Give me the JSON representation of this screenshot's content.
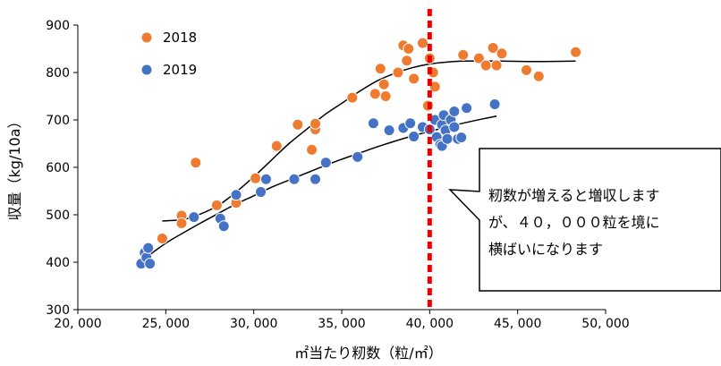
{
  "chart_data": {
    "type": "scatter",
    "xlabel": "㎡当たり籾数（粒/㎡）",
    "ylabel": "収量（kg/10a）",
    "xlim": [
      20000,
      50000
    ],
    "ylim": [
      300,
      900
    ],
    "x_ticks": [
      20000,
      25000,
      30000,
      35000,
      40000,
      45000,
      50000
    ],
    "x_tick_labels": [
      "20, 000",
      "25, 000",
      "30, 000",
      "35, 000",
      "40, 000",
      "45, 000",
      "50, 000"
    ],
    "y_ticks": [
      300,
      400,
      500,
      600,
      700,
      800,
      900
    ],
    "y_tick_labels": [
      "300",
      "400",
      "500",
      "600",
      "700",
      "800",
      "900"
    ],
    "grid": false,
    "legend_position": "top-left",
    "reference_line_x": 40000,
    "callout": {
      "lines": [
        "籾数が増えると増収します",
        "が、４０，０００粒を境に",
        "横ばいになります"
      ]
    },
    "series": [
      {
        "name": "2018",
        "color": "#ee7b30",
        "points": [
          [
            24800,
            450
          ],
          [
            25900,
            498
          ],
          [
            25900,
            482
          ],
          [
            26700,
            610
          ],
          [
            27900,
            520
          ],
          [
            29000,
            525
          ],
          [
            30100,
            577
          ],
          [
            31300,
            645
          ],
          [
            32500,
            690
          ],
          [
            33300,
            637
          ],
          [
            33500,
            680
          ],
          [
            33500,
            692
          ],
          [
            35600,
            747
          ],
          [
            36900,
            755
          ],
          [
            37200,
            808
          ],
          [
            37400,
            775
          ],
          [
            37500,
            750
          ],
          [
            38200,
            800
          ],
          [
            38500,
            857
          ],
          [
            38700,
            825
          ],
          [
            38800,
            850
          ],
          [
            39100,
            787
          ],
          [
            39600,
            862
          ],
          [
            39900,
            730
          ],
          [
            40000,
            830
          ],
          [
            40200,
            800
          ],
          [
            40300,
            770
          ],
          [
            41900,
            837
          ],
          [
            42800,
            830
          ],
          [
            43200,
            815
          ],
          [
            43600,
            852
          ],
          [
            43800,
            815
          ],
          [
            44100,
            840
          ],
          [
            45500,
            805
          ],
          [
            46200,
            792
          ],
          [
            48300,
            843
          ]
        ]
      },
      {
        "name": "2019",
        "color": "#4472c4",
        "points": [
          [
            23600,
            397
          ],
          [
            23800,
            420
          ],
          [
            23900,
            410
          ],
          [
            24000,
            430
          ],
          [
            24100,
            397
          ],
          [
            26600,
            495
          ],
          [
            28100,
            492
          ],
          [
            28300,
            476
          ],
          [
            29000,
            542
          ],
          [
            30400,
            548
          ],
          [
            30700,
            575
          ],
          [
            32300,
            575
          ],
          [
            33500,
            575
          ],
          [
            34100,
            610
          ],
          [
            35900,
            622
          ],
          [
            36800,
            693
          ],
          [
            37700,
            678
          ],
          [
            38500,
            683
          ],
          [
            38900,
            693
          ],
          [
            39100,
            665
          ],
          [
            39600,
            685
          ],
          [
            40000,
            680
          ],
          [
            40300,
            700
          ],
          [
            40400,
            664
          ],
          [
            40600,
            648
          ],
          [
            40700,
            645
          ],
          [
            40700,
            690
          ],
          [
            40800,
            710
          ],
          [
            40900,
            678
          ],
          [
            41000,
            660
          ],
          [
            41200,
            700
          ],
          [
            41400,
            718
          ],
          [
            41400,
            685
          ],
          [
            41600,
            660
          ],
          [
            41800,
            663
          ],
          [
            42100,
            725
          ],
          [
            43700,
            733
          ]
        ]
      }
    ],
    "trendlines": [
      {
        "series": "2018",
        "color": "#000000",
        "points": [
          [
            24800,
            487
          ],
          [
            26000,
            490
          ],
          [
            27000,
            502
          ],
          [
            28000,
            520
          ],
          [
            29000,
            548
          ],
          [
            30000,
            580
          ],
          [
            31000,
            615
          ],
          [
            32000,
            650
          ],
          [
            33000,
            680
          ],
          [
            34000,
            710
          ],
          [
            35000,
            735
          ],
          [
            36000,
            760
          ],
          [
            37000,
            782
          ],
          [
            38000,
            798
          ],
          [
            39000,
            810
          ],
          [
            40000,
            818
          ],
          [
            41000,
            822
          ],
          [
            42000,
            824
          ],
          [
            44000,
            824
          ],
          [
            46000,
            823
          ],
          [
            48300,
            824
          ]
        ]
      },
      {
        "series": "2019",
        "color": "#000000",
        "points": [
          [
            23700,
            405
          ],
          [
            25000,
            440
          ],
          [
            26000,
            462
          ],
          [
            27000,
            483
          ],
          [
            28000,
            503
          ],
          [
            29000,
            523
          ],
          [
            30000,
            540
          ],
          [
            31000,
            558
          ],
          [
            32000,
            573
          ],
          [
            33000,
            588
          ],
          [
            34000,
            603
          ],
          [
            35000,
            617
          ],
          [
            36000,
            630
          ],
          [
            37000,
            643
          ],
          [
            38000,
            655
          ],
          [
            39000,
            666
          ],
          [
            40000,
            676
          ],
          [
            41000,
            685
          ],
          [
            42000,
            694
          ],
          [
            43000,
            702
          ],
          [
            43800,
            708
          ]
        ]
      }
    ]
  }
}
